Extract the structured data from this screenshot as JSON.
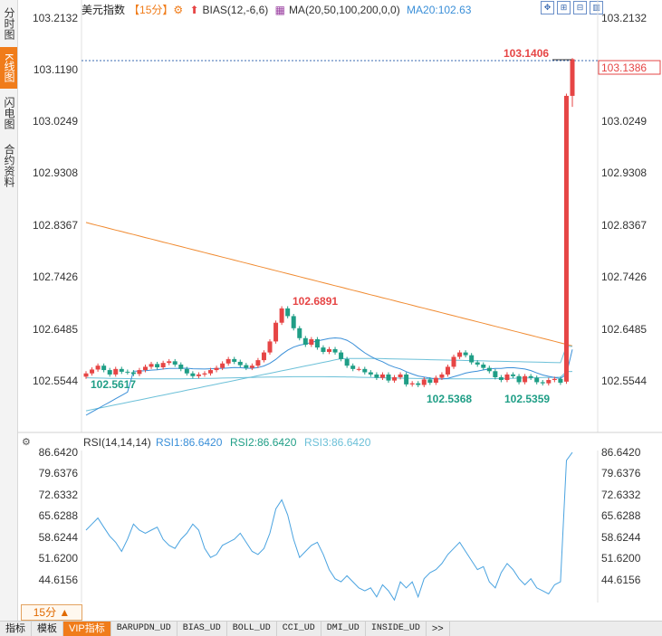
{
  "sidebar": {
    "tabs": [
      {
        "label": "分时图",
        "active": false
      },
      {
        "label": "K线图",
        "active": true
      },
      {
        "label": "闪电图",
        "active": false
      },
      {
        "label": "合约资料",
        "active": false
      }
    ]
  },
  "header": {
    "symbol": "美元指数",
    "period": "【15分】",
    "bias_label": "BIAS(12,-6,6)",
    "ma_label": "MA(20,50,100,200,0,0)",
    "ma20_label": "MA20:102.63"
  },
  "main_chart": {
    "y_labels": [
      "103.2132",
      "103.1190",
      "103.0249",
      "102.9308",
      "102.8367",
      "102.7426",
      "102.6485",
      "102.5544"
    ],
    "y_range": [
      102.49,
      103.2132
    ],
    "current_price": "103.1386",
    "annotations": {
      "high_peak": "103.1406",
      "local_high": "102.6891",
      "low1": "102.5617",
      "low2": "102.5368",
      "low3": "102.5359"
    }
  },
  "rsi_panel": {
    "title": "RSI(14,14,14)",
    "rsi1": "RSI1:86.6420",
    "rsi2": "RSI2:86.6420",
    "rsi3": "RSI3:86.6420",
    "y_labels": [
      "86.6420",
      "79.6376",
      "72.6332",
      "65.6288",
      "58.6244",
      "51.6200",
      "44.6156"
    ]
  },
  "period_button": "15分 ▲",
  "bottom_tabs": [
    "指标",
    "模板",
    "VIP指标",
    "BARUPDN_UD",
    "BIAS_UD",
    "BOLL_UD",
    "CCI_UD",
    "DMI_UD",
    "INSIDE_UD",
    ">>"
  ],
  "colors": {
    "up": "#e64545",
    "down": "#1f9e86",
    "ma20": "#3a8fd8",
    "ma_slow": "#6cc0d8",
    "ma200": "#f08a30",
    "rsi": "#4aa3e0",
    "accent": "#f07c1a"
  }
}
